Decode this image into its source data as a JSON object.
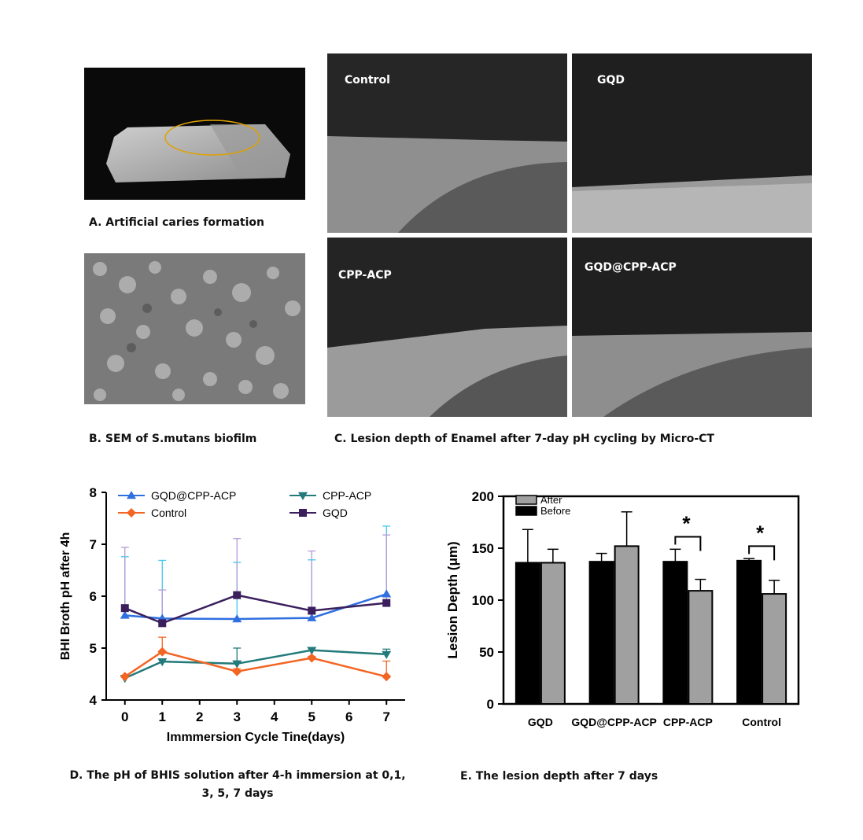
{
  "panels": {
    "a_caption": "A. Artificial caries formation",
    "b_caption": "B. SEM of  S.mutans biofilm",
    "c_caption": "C. Lesion depth of Enamel after 7-day pH cycling by Micro-CT",
    "d_caption": "D. The pH of BHIS solution after 4-h immersion at 0,1, 3, 5, 7 days",
    "e_caption": "E. The lesion depth after 7 days"
  },
  "micro_ct": {
    "labels": [
      "Control",
      "GQD",
      "CPP-ACP",
      "GQD@CPP-ACP"
    ]
  },
  "colors": {
    "gqd_cpp_acp": "#2f6fe0",
    "control": "#f26522",
    "cpp_acp": "#227a7a",
    "gqd": "#3a1f5c",
    "err_cpp": "#40c8f0",
    "err_gqd": "#b39ad8",
    "bar_before": "#000000",
    "bar_after": "#a0a0a0",
    "ellipse": "#e0a100"
  },
  "chart_data": [
    {
      "type": "line",
      "xlabel": "Immmersion  Cycle Tine(days)",
      "ylabel": "BHI Broth pH after 4h",
      "x": [
        0,
        1,
        3,
        5,
        7
      ],
      "xlim": [
        -0.5,
        7.5
      ],
      "xticks": [
        "0",
        "1",
        "2",
        "3",
        "4",
        "5",
        "6",
        "7"
      ],
      "ylim": [
        4,
        8
      ],
      "yticks": [
        "4",
        "5",
        "6",
        "7",
        "8"
      ],
      "legend": "top",
      "series": [
        {
          "name": "GQD@CPP-ACP",
          "marker": "triangle-up",
          "values": [
            5.63,
            5.57,
            5.56,
            5.58,
            6.04
          ],
          "err": [
            1.13,
            1.12,
            1.09,
            1.12,
            1.31
          ]
        },
        {
          "name": "CPP-ACP",
          "marker": "triangle-down",
          "values": [
            4.42,
            4.74,
            4.7,
            4.96,
            4.88
          ],
          "err": [
            0.05,
            0.05,
            0.3,
            0.05,
            0.1
          ]
        },
        {
          "name": "Control",
          "marker": "diamond",
          "values": [
            4.45,
            4.93,
            4.55,
            4.81,
            4.45
          ],
          "err": [
            0.02,
            0.28,
            0.05,
            0.03,
            0.3
          ]
        },
        {
          "name": "GQD",
          "marker": "square",
          "values": [
            5.77,
            5.48,
            6.02,
            5.72,
            5.87
          ],
          "err": [
            1.17,
            0.64,
            1.09,
            1.15,
            1.31
          ]
        }
      ]
    },
    {
      "type": "bar",
      "ylabel": "Lesion Depth (μm)",
      "categories": [
        "GQD",
        "GQD@CPP-ACP",
        "CPP-ACP",
        "Control"
      ],
      "ylim": [
        0,
        200
      ],
      "yticks": [
        "0",
        "50",
        "100",
        "150",
        "200"
      ],
      "legend": "top-left",
      "series": [
        {
          "name": "Before",
          "values": [
            136,
            137,
            137,
            138
          ],
          "err": [
            32,
            8,
            12,
            2
          ]
        },
        {
          "name": "After",
          "values": [
            136,
            152,
            109,
            106
          ],
          "err": [
            13,
            33,
            11,
            13
          ]
        }
      ],
      "significance": [
        {
          "category": "CPP-ACP",
          "mark": "*"
        },
        {
          "category": "Control",
          "mark": "*"
        }
      ]
    }
  ]
}
